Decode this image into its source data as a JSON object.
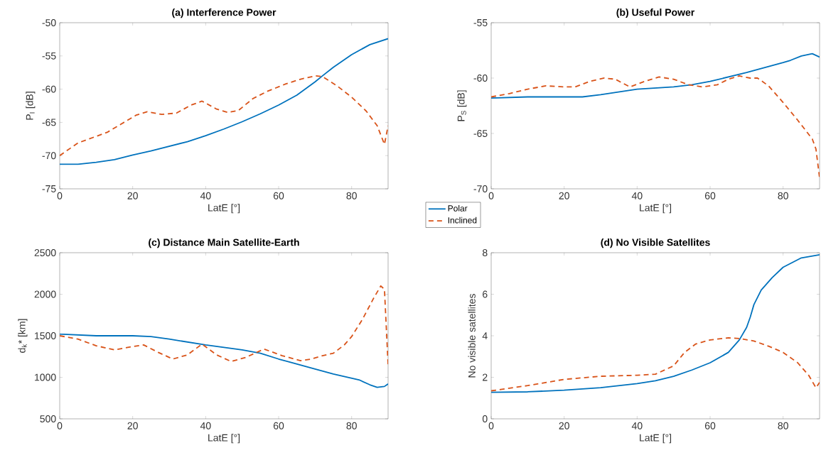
{
  "chart_data": [
    {
      "type": "line",
      "title": "(a) Interference Power",
      "xlabel": "LatE [°]",
      "ylabel": "P$_{I}$ [dB]",
      "xlim": [
        0,
        90
      ],
      "ylim": [
        -75,
        -50
      ],
      "xticks": [
        0,
        20,
        40,
        60,
        80
      ],
      "yticks": [
        -75,
        -70,
        -65,
        -60,
        -55,
        -50
      ],
      "legend": false,
      "series": [
        {
          "color": "#0072bd",
          "line_style": "solid",
          "x": [
            0,
            5,
            10,
            15,
            20,
            25,
            30,
            35,
            40,
            45,
            50,
            55,
            60,
            65,
            70,
            72,
            75,
            80,
            85,
            90
          ],
          "values": [
            -71.3,
            -71.3,
            -71.0,
            -70.6,
            -69.9,
            -69.3,
            -68.6,
            -67.9,
            -67.0,
            -66.0,
            -64.9,
            -63.7,
            -62.4,
            -60.9,
            -58.9,
            -58.0,
            -56.7,
            -54.8,
            -53.3,
            -52.4
          ]
        },
        {
          "color": "#d95319",
          "line_style": "dashed",
          "x": [
            0,
            5,
            10,
            13,
            17,
            21,
            24,
            28,
            32,
            36,
            39,
            43,
            46,
            49,
            53,
            57,
            62,
            66,
            70,
            72,
            76,
            80,
            84,
            87,
            89,
            90
          ],
          "values": [
            -70,
            -68.1,
            -67.1,
            -66.5,
            -65.2,
            -63.9,
            -63.4,
            -63.8,
            -63.6,
            -62.4,
            -61.8,
            -63.0,
            -63.5,
            -63.2,
            -61.4,
            -60.3,
            -59.2,
            -58.5,
            -58.0,
            -58.1,
            -59.5,
            -61.2,
            -63.3,
            -65.5,
            -68.3,
            -65.5
          ]
        }
      ]
    },
    {
      "type": "line",
      "title": "(b) Useful Power",
      "xlabel": "LatE [°]",
      "ylabel": "P$_{S}$ [dB]",
      "xlim": [
        0,
        90
      ],
      "ylim": [
        -70,
        -55
      ],
      "xticks": [
        0,
        20,
        40,
        60,
        80
      ],
      "yticks": [
        -70,
        -65,
        -60,
        -55
      ],
      "legend": "bottom left",
      "series": [
        {
          "name": "Polar",
          "color": "#0072bd",
          "line_style": "solid",
          "x": [
            0,
            10,
            20,
            25,
            30,
            40,
            50,
            55,
            60,
            70,
            80,
            82,
            85,
            88,
            90
          ],
          "values": [
            -61.8,
            -61.7,
            -61.7,
            -61.7,
            -61.5,
            -61.0,
            -60.8,
            -60.6,
            -60.3,
            -59.5,
            -58.6,
            -58.4,
            -58.0,
            -57.8,
            -58.1
          ]
        },
        {
          "name": "Inclined",
          "color": "#d95319",
          "line_style": "dashed",
          "x": [
            0,
            5,
            10,
            15,
            20,
            23,
            27,
            31,
            34,
            38,
            42,
            46,
            50,
            54,
            58,
            62,
            65,
            68,
            71,
            73,
            76,
            80,
            84,
            88,
            89,
            90
          ],
          "values": [
            -61.7,
            -61.4,
            -61.0,
            -60.7,
            -60.8,
            -60.8,
            -60.3,
            -60.0,
            -60.1,
            -60.8,
            -60.3,
            -59.9,
            -60.1,
            -60.6,
            -60.8,
            -60.6,
            -60.1,
            -59.8,
            -60.0,
            -60.0,
            -60.7,
            -62.2,
            -63.8,
            -65.5,
            -66.4,
            -69
          ]
        }
      ]
    },
    {
      "type": "line",
      "title": "(c) Distance Main Satellite-Earth",
      "xlabel": "LatE [°]",
      "ylabel": "d$_{k}$* [km]",
      "xlim": [
        0,
        90
      ],
      "ylim": [
        500,
        2500
      ],
      "xticks": [
        0,
        20,
        40,
        60,
        80
      ],
      "yticks": [
        500,
        1000,
        1500,
        2000,
        2500
      ],
      "legend": false,
      "series": [
        {
          "color": "#0072bd",
          "line_style": "solid",
          "x": [
            0,
            10,
            20,
            25,
            30,
            40,
            50,
            55,
            60,
            70,
            75,
            82,
            85,
            87,
            89,
            90
          ],
          "values": [
            1520,
            1500,
            1500,
            1490,
            1460,
            1390,
            1330,
            1290,
            1220,
            1100,
            1040,
            970,
            910,
            880,
            890,
            920
          ]
        },
        {
          "color": "#d95319",
          "line_style": "dashed",
          "x": [
            0,
            5,
            10,
            15,
            20,
            23,
            27,
            31,
            35,
            39,
            43,
            47,
            51,
            56,
            61,
            66,
            69,
            72,
            75,
            78,
            80,
            83,
            86,
            88,
            89,
            90
          ],
          "values": [
            1500,
            1460,
            1380,
            1330,
            1370,
            1390,
            1300,
            1220,
            1270,
            1400,
            1270,
            1190,
            1240,
            1340,
            1260,
            1200,
            1220,
            1260,
            1290,
            1390,
            1490,
            1700,
            1950,
            2100,
            2060,
            1150
          ]
        }
      ]
    },
    {
      "type": "line",
      "title": "(d) No Visible Satellites",
      "xlabel": "LatE [°]",
      "ylabel": "No visible satellites",
      "xlim": [
        0,
        90
      ],
      "ylim": [
        0,
        8
      ],
      "xticks": [
        0,
        20,
        40,
        60,
        80
      ],
      "yticks": [
        0,
        2,
        4,
        6,
        8
      ],
      "legend": false,
      "series": [
        {
          "color": "#0072bd",
          "line_style": "solid",
          "x": [
            0,
            10,
            20,
            30,
            40,
            45,
            50,
            55,
            60,
            65,
            68,
            70,
            71,
            72,
            74,
            77,
            80,
            85,
            90
          ],
          "values": [
            1.28,
            1.3,
            1.38,
            1.5,
            1.7,
            1.83,
            2.05,
            2.35,
            2.7,
            3.2,
            3.8,
            4.4,
            4.9,
            5.5,
            6.2,
            6.8,
            7.3,
            7.75,
            7.9
          ]
        },
        {
          "color": "#d95319",
          "line_style": "dashed",
          "x": [
            0,
            10,
            20,
            30,
            40,
            45,
            50,
            53,
            56,
            60,
            65,
            68,
            72,
            76,
            80,
            84,
            87,
            89,
            90
          ],
          "values": [
            1.35,
            1.6,
            1.9,
            2.05,
            2.1,
            2.15,
            2.55,
            3.2,
            3.6,
            3.8,
            3.9,
            3.87,
            3.75,
            3.5,
            3.2,
            2.7,
            2.1,
            1.5,
            1.75
          ]
        }
      ]
    }
  ]
}
